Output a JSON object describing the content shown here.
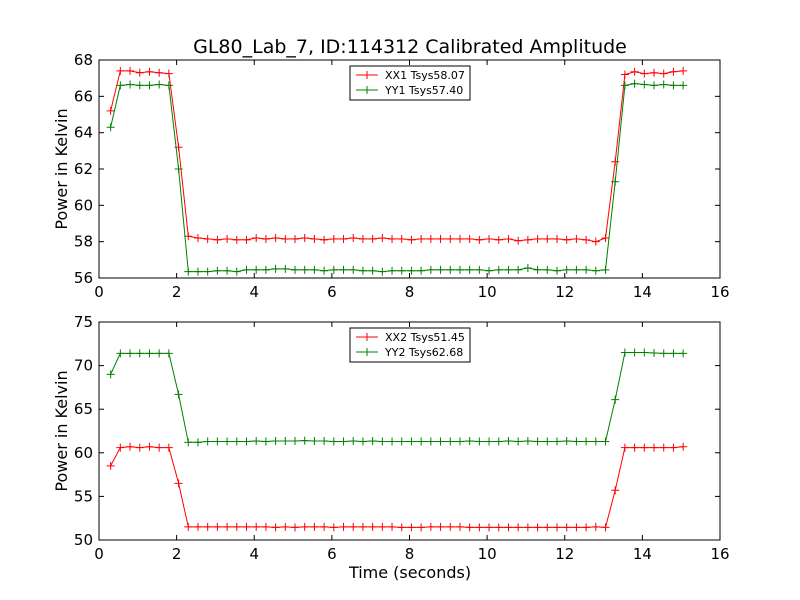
{
  "figure_title": "GL80_Lab_7, ID:114312 Calibrated Amplitude",
  "chart_data": [
    {
      "type": "line",
      "ylabel": "Power in Kelvin",
      "xlabel": "",
      "xlim": [
        0,
        16
      ],
      "ylim": [
        56,
        68
      ],
      "xticks": [
        0,
        2,
        4,
        6,
        8,
        10,
        12,
        14,
        16
      ],
      "yticks": [
        56,
        58,
        60,
        62,
        64,
        66,
        68
      ],
      "legend_position": "upper-center",
      "x": [
        0.3,
        0.55,
        0.8,
        1.05,
        1.3,
        1.55,
        1.8,
        2.05,
        2.3,
        2.55,
        2.8,
        3.05,
        3.3,
        3.55,
        3.8,
        4.05,
        4.3,
        4.55,
        4.8,
        5.05,
        5.3,
        5.55,
        5.8,
        6.05,
        6.3,
        6.55,
        6.8,
        7.05,
        7.3,
        7.55,
        7.8,
        8.05,
        8.3,
        8.55,
        8.8,
        9.05,
        9.3,
        9.55,
        9.8,
        10.05,
        10.3,
        10.55,
        10.8,
        11.05,
        11.3,
        11.55,
        11.8,
        12.05,
        12.3,
        12.55,
        12.8,
        13.05,
        13.3,
        13.55,
        13.8,
        14.05,
        14.3,
        14.55,
        14.8,
        15.05
      ],
      "series": [
        {
          "name": "XX1 Tsys58.07",
          "color": "#ff0000",
          "values": [
            65.2,
            67.4,
            67.4,
            67.3,
            67.35,
            67.3,
            67.25,
            63.2,
            58.3,
            58.2,
            58.15,
            58.1,
            58.15,
            58.1,
            58.1,
            58.2,
            58.15,
            58.2,
            58.15,
            58.15,
            58.2,
            58.15,
            58.1,
            58.15,
            58.15,
            58.2,
            58.15,
            58.15,
            58.2,
            58.15,
            58.15,
            58.1,
            58.15,
            58.15,
            58.15,
            58.15,
            58.15,
            58.15,
            58.1,
            58.15,
            58.1,
            58.15,
            58.05,
            58.1,
            58.15,
            58.15,
            58.15,
            58.1,
            58.15,
            58.1,
            58.0,
            58.2,
            62.4,
            67.2,
            67.35,
            67.25,
            67.3,
            67.25,
            67.35,
            67.4
          ]
        },
        {
          "name": "YY1 Tsys57.40",
          "color": "#008000",
          "values": [
            64.3,
            66.6,
            66.65,
            66.6,
            66.6,
            66.65,
            66.6,
            62.0,
            56.35,
            56.35,
            56.35,
            56.4,
            56.4,
            56.35,
            56.45,
            56.45,
            56.45,
            56.5,
            56.5,
            56.45,
            56.45,
            56.45,
            56.4,
            56.45,
            56.45,
            56.45,
            56.4,
            56.4,
            56.35,
            56.4,
            56.4,
            56.4,
            56.4,
            56.45,
            56.45,
            56.45,
            56.45,
            56.45,
            56.45,
            56.4,
            56.45,
            56.45,
            56.45,
            56.55,
            56.45,
            56.45,
            56.4,
            56.45,
            56.45,
            56.45,
            56.4,
            56.45,
            61.3,
            66.6,
            66.7,
            66.65,
            66.6,
            66.65,
            66.6,
            66.6
          ]
        }
      ]
    },
    {
      "type": "line",
      "ylabel": "Power in Kelvin",
      "xlabel": "Time (seconds)",
      "xlim": [
        0,
        16
      ],
      "ylim": [
        50,
        75
      ],
      "xticks": [
        0,
        2,
        4,
        6,
        8,
        10,
        12,
        14,
        16
      ],
      "yticks": [
        50,
        55,
        60,
        65,
        70,
        75
      ],
      "legend_position": "upper-center",
      "x": [
        0.3,
        0.55,
        0.8,
        1.05,
        1.3,
        1.55,
        1.8,
        2.05,
        2.3,
        2.55,
        2.8,
        3.05,
        3.3,
        3.55,
        3.8,
        4.05,
        4.3,
        4.55,
        4.8,
        5.05,
        5.3,
        5.55,
        5.8,
        6.05,
        6.3,
        6.55,
        6.8,
        7.05,
        7.3,
        7.55,
        7.8,
        8.05,
        8.3,
        8.55,
        8.8,
        9.05,
        9.3,
        9.55,
        9.8,
        10.05,
        10.3,
        10.55,
        10.8,
        11.05,
        11.3,
        11.55,
        11.8,
        12.05,
        12.3,
        12.55,
        12.8,
        13.05,
        13.3,
        13.55,
        13.8,
        14.05,
        14.3,
        14.55,
        14.8,
        15.05
      ],
      "series": [
        {
          "name": "XX2 Tsys51.45",
          "color": "#ff0000",
          "values": [
            58.5,
            60.6,
            60.7,
            60.6,
            60.7,
            60.6,
            60.6,
            56.5,
            51.5,
            51.5,
            51.5,
            51.5,
            51.5,
            51.5,
            51.5,
            51.5,
            51.5,
            51.45,
            51.5,
            51.45,
            51.5,
            51.5,
            51.5,
            51.45,
            51.5,
            51.5,
            51.5,
            51.5,
            51.5,
            51.5,
            51.45,
            51.45,
            51.45,
            51.5,
            51.5,
            51.5,
            51.5,
            51.45,
            51.45,
            51.45,
            51.45,
            51.45,
            51.45,
            51.45,
            51.45,
            51.45,
            51.45,
            51.45,
            51.45,
            51.45,
            51.5,
            51.45,
            55.7,
            60.6,
            60.6,
            60.6,
            60.6,
            60.6,
            60.6,
            60.7
          ]
        },
        {
          "name": "YY2 Tsys62.68",
          "color": "#008000",
          "values": [
            69.0,
            71.4,
            71.4,
            71.4,
            71.4,
            71.4,
            71.4,
            66.7,
            61.2,
            61.2,
            61.3,
            61.3,
            61.3,
            61.3,
            61.3,
            61.35,
            61.3,
            61.35,
            61.35,
            61.35,
            61.4,
            61.35,
            61.35,
            61.3,
            61.3,
            61.35,
            61.3,
            61.35,
            61.3,
            61.3,
            61.3,
            61.3,
            61.3,
            61.3,
            61.3,
            61.3,
            61.3,
            61.35,
            61.3,
            61.3,
            61.3,
            61.35,
            61.3,
            61.35,
            61.3,
            61.3,
            61.3,
            61.35,
            61.3,
            61.3,
            61.3,
            61.3,
            66.1,
            71.5,
            71.5,
            71.5,
            71.45,
            71.4,
            71.4,
            71.4
          ]
        }
      ]
    }
  ]
}
